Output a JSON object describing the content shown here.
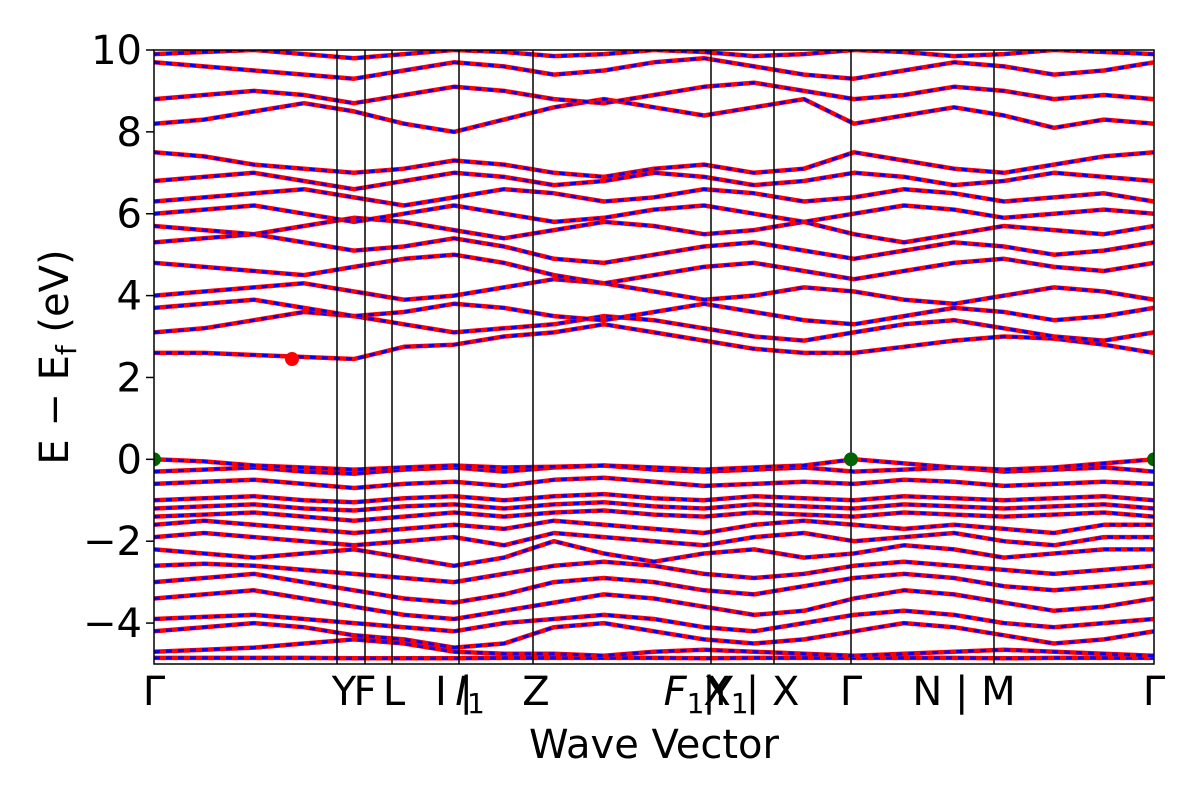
{
  "chart_data": {
    "type": "line",
    "title": "",
    "xlabel": "Wave Vector",
    "ylabel": "E − E",
    "ylabel_sub": "f",
    "ylabel_unit": " (eV)",
    "ylim": [
      -5,
      10
    ],
    "yticks": [
      -4,
      -2,
      0,
      2,
      4,
      6,
      8,
      10
    ],
    "ytick_labels": [
      "−4",
      "−2",
      "0",
      "2",
      "4",
      "6",
      "8",
      "10"
    ],
    "grid": false,
    "legend": "none",
    "kpath_positions": [
      0,
      0.183,
      0.211,
      0.238,
      0.305,
      0.379,
      0.557,
      0.62,
      0.697,
      0.84,
      1.0
    ],
    "kpath_labels": [
      {
        "pos": 0.0,
        "text": "Γ",
        "sub": ""
      },
      {
        "pos": 0.19,
        "text": "Y",
        "sub": ""
      },
      {
        "pos": 0.211,
        "text": "F",
        "sub": ""
      },
      {
        "pos": 0.24,
        "text": "L",
        "sub": ""
      },
      {
        "pos": 0.3,
        "text": "I | ",
        "sub": "",
        "italic_next": true
      },
      {
        "pos": 0.316,
        "text": "I",
        "sub": "1",
        "italic": true
      },
      {
        "pos": 0.382,
        "text": "Z",
        "sub": ""
      },
      {
        "pos": 0.53,
        "text": "F",
        "sub": "1",
        "italic": true
      },
      {
        "pos": 0.555,
        "text": " |",
        "sub": ""
      },
      {
        "pos": 0.572,
        "text": "X",
        "sub": "1",
        "italic": false
      },
      {
        "pos": 0.6,
        "text": "Y | X",
        "sub": ""
      },
      {
        "pos": 0.697,
        "text": "Γ",
        "sub": ""
      },
      {
        "pos": 0.81,
        "text": "N | M",
        "sub": ""
      },
      {
        "pos": 1.0,
        "text": "Γ",
        "sub": ""
      }
    ],
    "series": [
      {
        "color": "#ff0000",
        "style": "solid"
      },
      {
        "color": "#0000ff",
        "style": "dashed"
      }
    ],
    "bands": [
      [
        -4.85,
        -4.85,
        -4.85,
        -4.85,
        -4.86,
        -4.86,
        -4.86,
        -4.85,
        -4.85,
        -4.85,
        -4.85,
        -4.86,
        -4.85,
        -4.85,
        -4.85,
        -4.85,
        -4.85,
        -4.86,
        -4.85,
        -4.85,
        -4.85
      ],
      [
        -4.7,
        -4.65,
        -4.6,
        -4.5,
        -4.4,
        -4.5,
        -4.7,
        -4.75,
        -4.75,
        -4.8,
        -4.7,
        -4.65,
        -4.7,
        -4.75,
        -4.8,
        -4.75,
        -4.7,
        -4.65,
        -4.7,
        -4.75,
        -4.8
      ],
      [
        -4.2,
        -4.1,
        -4.0,
        -4.1,
        -4.3,
        -4.4,
        -4.6,
        -4.5,
        -4.1,
        -4.0,
        -4.2,
        -4.4,
        -4.5,
        -4.4,
        -4.2,
        -4.0,
        -4.1,
        -4.3,
        -4.5,
        -4.4,
        -4.2
      ],
      [
        -3.9,
        -3.85,
        -3.8,
        -3.9,
        -4.0,
        -4.1,
        -4.2,
        -4.0,
        -3.9,
        -3.8,
        -3.9,
        -4.1,
        -4.2,
        -4.0,
        -3.8,
        -3.7,
        -3.8,
        -4.0,
        -4.1,
        -4.0,
        -3.9
      ],
      [
        -3.4,
        -3.3,
        -3.2,
        -3.4,
        -3.6,
        -3.8,
        -3.9,
        -3.7,
        -3.5,
        -3.3,
        -3.4,
        -3.6,
        -3.8,
        -3.7,
        -3.4,
        -3.2,
        -3.3,
        -3.5,
        -3.7,
        -3.6,
        -3.4
      ],
      [
        -3.0,
        -2.9,
        -2.8,
        -3.0,
        -3.2,
        -3.4,
        -3.5,
        -3.3,
        -3.0,
        -2.9,
        -3.0,
        -3.2,
        -3.3,
        -3.1,
        -2.9,
        -2.8,
        -2.9,
        -3.1,
        -3.2,
        -3.1,
        -3.0
      ],
      [
        -2.6,
        -2.55,
        -2.6,
        -2.7,
        -2.8,
        -2.9,
        -3.0,
        -2.8,
        -2.6,
        -2.5,
        -2.6,
        -2.8,
        -2.9,
        -2.8,
        -2.6,
        -2.5,
        -2.6,
        -2.7,
        -2.8,
        -2.7,
        -2.6
      ],
      [
        -2.2,
        -2.3,
        -2.4,
        -2.3,
        -2.2,
        -2.4,
        -2.6,
        -2.4,
        -2.0,
        -2.3,
        -2.5,
        -2.3,
        -2.2,
        -2.4,
        -2.3,
        -2.1,
        -2.2,
        -2.4,
        -2.3,
        -2.2,
        -2.2
      ],
      [
        -1.9,
        -1.8,
        -1.9,
        -2.0,
        -2.1,
        -2.0,
        -1.9,
        -2.1,
        -1.8,
        -1.9,
        -2.0,
        -2.1,
        -1.9,
        -1.8,
        -2.0,
        -1.9,
        -1.8,
        -2.0,
        -2.1,
        -1.9,
        -1.9
      ],
      [
        -1.6,
        -1.5,
        -1.6,
        -1.7,
        -1.8,
        -1.7,
        -1.6,
        -1.7,
        -1.5,
        -1.6,
        -1.7,
        -1.8,
        -1.6,
        -1.5,
        -1.6,
        -1.7,
        -1.6,
        -1.7,
        -1.8,
        -1.6,
        -1.6
      ],
      [
        -1.4,
        -1.35,
        -1.3,
        -1.4,
        -1.5,
        -1.4,
        -1.3,
        -1.4,
        -1.3,
        -1.25,
        -1.35,
        -1.4,
        -1.3,
        -1.35,
        -1.4,
        -1.3,
        -1.35,
        -1.4,
        -1.35,
        -1.3,
        -1.4
      ],
      [
        -1.2,
        -1.15,
        -1.1,
        -1.2,
        -1.25,
        -1.15,
        -1.1,
        -1.2,
        -1.1,
        -1.05,
        -1.15,
        -1.2,
        -1.1,
        -1.15,
        -1.2,
        -1.1,
        -1.15,
        -1.2,
        -1.15,
        -1.1,
        -1.2
      ],
      [
        -1.0,
        -0.95,
        -0.9,
        -1.0,
        -1.05,
        -0.95,
        -0.9,
        -1.0,
        -0.9,
        -0.85,
        -0.95,
        -1.0,
        -0.9,
        -0.95,
        -1.0,
        -0.9,
        -0.95,
        -1.0,
        -0.95,
        -0.9,
        -1.0
      ],
      [
        -0.6,
        -0.55,
        -0.5,
        -0.6,
        -0.7,
        -0.6,
        -0.55,
        -0.65,
        -0.5,
        -0.45,
        -0.55,
        -0.65,
        -0.6,
        -0.55,
        -0.6,
        -0.5,
        -0.55,
        -0.65,
        -0.6,
        -0.55,
        -0.6
      ],
      [
        -0.3,
        -0.25,
        -0.2,
        -0.3,
        -0.35,
        -0.25,
        -0.2,
        -0.3,
        -0.2,
        -0.15,
        -0.25,
        -0.3,
        -0.25,
        -0.2,
        -0.3,
        -0.25,
        -0.2,
        -0.3,
        -0.25,
        -0.2,
        -0.3
      ],
      [
        0.0,
        -0.05,
        -0.15,
        -0.2,
        -0.25,
        -0.2,
        -0.15,
        -0.2,
        -0.18,
        -0.15,
        -0.2,
        -0.25,
        -0.2,
        -0.15,
        0.0,
        -0.1,
        -0.2,
        -0.25,
        -0.2,
        -0.1,
        0.0
      ],
      [
        2.6,
        2.6,
        2.55,
        2.5,
        2.45,
        2.75,
        2.8,
        3.0,
        3.1,
        3.3,
        3.1,
        2.9,
        2.7,
        2.6,
        2.6,
        2.75,
        2.9,
        3.0,
        2.95,
        2.8,
        2.6
      ],
      [
        3.1,
        3.2,
        3.4,
        3.6,
        3.5,
        3.3,
        3.1,
        3.2,
        3.3,
        3.5,
        3.4,
        3.2,
        3.0,
        2.9,
        3.1,
        3.3,
        3.4,
        3.2,
        3.0,
        2.9,
        3.1
      ],
      [
        3.7,
        3.8,
        3.9,
        3.7,
        3.5,
        3.6,
        3.8,
        3.7,
        3.5,
        3.4,
        3.6,
        3.8,
        3.6,
        3.4,
        3.3,
        3.5,
        3.7,
        3.6,
        3.4,
        3.5,
        3.7
      ],
      [
        4.0,
        4.1,
        4.2,
        4.3,
        4.1,
        3.9,
        4.0,
        4.2,
        4.4,
        4.3,
        4.1,
        3.9,
        4.0,
        4.2,
        4.1,
        3.9,
        3.8,
        4.0,
        4.2,
        4.1,
        3.9
      ],
      [
        4.8,
        4.7,
        4.6,
        4.5,
        4.7,
        4.9,
        5.0,
        4.8,
        4.5,
        4.3,
        4.5,
        4.7,
        4.8,
        4.6,
        4.4,
        4.6,
        4.8,
        4.9,
        4.7,
        4.6,
        4.8
      ],
      [
        5.3,
        5.4,
        5.5,
        5.3,
        5.1,
        5.2,
        5.4,
        5.2,
        4.9,
        4.8,
        5.0,
        5.2,
        5.3,
        5.1,
        4.9,
        5.1,
        5.3,
        5.2,
        5.0,
        5.1,
        5.3
      ],
      [
        5.7,
        5.6,
        5.5,
        5.7,
        5.9,
        5.8,
        5.6,
        5.4,
        5.6,
        5.8,
        5.7,
        5.5,
        5.6,
        5.8,
        5.5,
        5.3,
        5.5,
        5.7,
        5.6,
        5.5,
        5.7
      ],
      [
        6.0,
        6.1,
        6.2,
        6.0,
        5.8,
        6.0,
        6.2,
        6.0,
        5.8,
        5.9,
        6.1,
        6.2,
        6.0,
        5.8,
        6.0,
        6.2,
        6.1,
        5.9,
        6.0,
        6.1,
        6.0
      ],
      [
        6.3,
        6.4,
        6.5,
        6.6,
        6.4,
        6.2,
        6.4,
        6.6,
        6.5,
        6.3,
        6.4,
        6.6,
        6.5,
        6.3,
        6.4,
        6.6,
        6.5,
        6.3,
        6.4,
        6.5,
        6.3
      ],
      [
        6.8,
        6.9,
        7.0,
        6.8,
        6.6,
        6.8,
        7.0,
        6.9,
        6.7,
        6.8,
        7.0,
        6.9,
        6.7,
        6.8,
        7.0,
        6.9,
        6.7,
        6.8,
        7.0,
        6.9,
        6.8
      ],
      [
        7.5,
        7.4,
        7.2,
        7.1,
        7.0,
        7.1,
        7.3,
        7.2,
        7.0,
        6.9,
        7.1,
        7.2,
        7.0,
        7.1,
        7.5,
        7.3,
        7.1,
        7.0,
        7.2,
        7.4,
        7.5
      ],
      [
        8.2,
        8.3,
        8.5,
        8.7,
        8.5,
        8.2,
        8.0,
        8.3,
        8.6,
        8.8,
        8.6,
        8.4,
        8.6,
        8.8,
        8.2,
        8.4,
        8.6,
        8.4,
        8.1,
        8.3,
        8.2
      ],
      [
        8.8,
        8.9,
        9.0,
        8.9,
        8.7,
        8.9,
        9.1,
        9.0,
        8.8,
        8.7,
        8.9,
        9.1,
        9.2,
        9.0,
        8.8,
        8.9,
        9.1,
        9.0,
        8.8,
        8.9,
        8.8
      ],
      [
        9.7,
        9.6,
        9.5,
        9.4,
        9.3,
        9.5,
        9.7,
        9.6,
        9.4,
        9.5,
        9.7,
        9.8,
        9.6,
        9.4,
        9.3,
        9.5,
        9.7,
        9.6,
        9.4,
        9.5,
        9.7
      ],
      [
        9.9,
        9.95,
        10.0,
        9.9,
        9.8,
        9.9,
        10.0,
        9.95,
        9.85,
        9.9,
        10.0,
        9.95,
        9.85,
        9.9,
        10.0,
        9.95,
        9.85,
        9.9,
        10.0,
        9.95,
        9.9
      ]
    ],
    "markers": [
      {
        "k": 0.0,
        "e": 0.0,
        "color": "#006400"
      },
      {
        "k": 0.138,
        "e": 2.45,
        "color": "#ff0000"
      },
      {
        "k": 0.697,
        "e": 0.0,
        "color": "#006400"
      },
      {
        "k": 1.0,
        "e": 0.0,
        "color": "#006400"
      }
    ]
  }
}
